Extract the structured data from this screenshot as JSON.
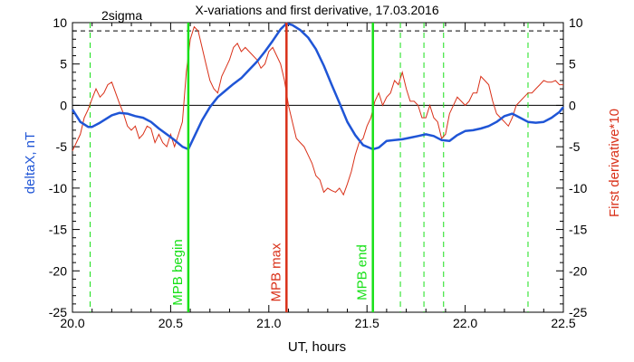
{
  "chart_data": {
    "type": "line",
    "title": "X-variations and first derivative, 17.03.2016",
    "xlabel": "UT, hours",
    "ylabel_left": "deltaX, nT",
    "ylabel_right": "First derivative*10",
    "xlim": [
      20.0,
      22.5
    ],
    "ylim_left": [
      -25,
      10
    ],
    "ylim_right": [
      -25,
      10
    ],
    "x_ticks": [
      "20.0",
      "20.5",
      "21.0",
      "21.5",
      "22.0",
      "22.5"
    ],
    "y_ticks": [
      "10",
      "5",
      "0",
      "-5",
      "-10",
      "-15",
      "-20",
      "-25"
    ],
    "sigma_label": "2sigma",
    "sigma_level": 9,
    "zero_level": 0,
    "colors": {
      "deltaX": "#1f55d6",
      "derivative": "#d93018",
      "mpb_begin_end": "#18e018",
      "mpb_max": "#d93018",
      "sigma": "#000000"
    },
    "vertical_markers": [
      {
        "label": "MPB begin",
        "x": 20.59,
        "kind": "begin"
      },
      {
        "label": "MPB max",
        "x": 21.09,
        "kind": "max"
      },
      {
        "label": "MPB end",
        "x": 21.53,
        "kind": "end"
      }
    ],
    "dashed_green_x": [
      20.09,
      21.67,
      21.79,
      21.89,
      22.32
    ],
    "series": [
      {
        "key": "deltaX",
        "axis": "left",
        "x": [
          20.0,
          20.04,
          20.08,
          20.1,
          20.14,
          20.2,
          20.24,
          20.28,
          20.32,
          20.36,
          20.4,
          20.44,
          20.48,
          20.52,
          20.56,
          20.59,
          20.62,
          20.66,
          20.7,
          20.74,
          20.78,
          20.82,
          20.86,
          20.9,
          20.94,
          20.98,
          21.02,
          21.06,
          21.09,
          21.12,
          21.16,
          21.2,
          21.24,
          21.28,
          21.32,
          21.36,
          21.4,
          21.44,
          21.48,
          21.53,
          21.56,
          21.6,
          21.64,
          21.68,
          21.72,
          21.76,
          21.8,
          21.84,
          21.88,
          21.92,
          21.96,
          22.0,
          22.04,
          22.08,
          22.12,
          22.16,
          22.2,
          22.24,
          22.28,
          22.32,
          22.36,
          22.4,
          22.44,
          22.48,
          22.5
        ],
        "values": [
          -0.5,
          -2.0,
          -2.6,
          -2.6,
          -2.1,
          -1.2,
          -0.9,
          -1.0,
          -1.3,
          -1.5,
          -2.0,
          -2.8,
          -3.5,
          -4.2,
          -5.0,
          -5.3,
          -3.8,
          -1.8,
          -0.2,
          1.0,
          1.8,
          2.6,
          3.3,
          4.3,
          5.3,
          6.5,
          7.8,
          9.2,
          9.9,
          9.7,
          9.1,
          8.2,
          6.8,
          4.8,
          2.5,
          0.3,
          -2.0,
          -3.6,
          -4.8,
          -5.3,
          -5.1,
          -4.3,
          -4.2,
          -4.1,
          -3.9,
          -3.7,
          -3.5,
          -3.7,
          -4.2,
          -4.3,
          -3.6,
          -3.1,
          -3.0,
          -2.8,
          -2.5,
          -2.0,
          -1.3,
          -1.0,
          -1.5,
          -2.0,
          -2.1,
          -2.0,
          -1.5,
          -0.8,
          -0.2
        ]
      },
      {
        "key": "derivative",
        "axis": "right",
        "x": [
          20.0,
          20.02,
          20.04,
          20.06,
          20.08,
          20.1,
          20.12,
          20.14,
          20.16,
          20.18,
          20.2,
          20.22,
          20.24,
          20.26,
          20.28,
          20.3,
          20.32,
          20.34,
          20.36,
          20.38,
          20.4,
          20.42,
          20.44,
          20.46,
          20.48,
          20.5,
          20.52,
          20.54,
          20.56,
          20.58,
          20.6,
          20.62,
          20.64,
          20.66,
          20.68,
          20.7,
          20.72,
          20.74,
          20.76,
          20.78,
          20.8,
          20.82,
          20.84,
          20.86,
          20.88,
          20.9,
          20.92,
          20.94,
          20.96,
          20.98,
          21.0,
          21.02,
          21.04,
          21.06,
          21.08,
          21.1,
          21.12,
          21.14,
          21.16,
          21.18,
          21.2,
          21.22,
          21.24,
          21.26,
          21.28,
          21.3,
          21.32,
          21.34,
          21.36,
          21.38,
          21.4,
          21.42,
          21.44,
          21.46,
          21.48,
          21.5,
          21.52,
          21.54,
          21.56,
          21.58,
          21.6,
          21.62,
          21.64,
          21.66,
          21.68,
          21.7,
          21.72,
          21.74,
          21.76,
          21.78,
          21.8,
          21.82,
          21.84,
          21.86,
          21.88,
          21.9,
          21.92,
          21.94,
          21.96,
          21.98,
          22.0,
          22.02,
          22.04,
          22.06,
          22.08,
          22.1,
          22.12,
          22.14,
          22.16,
          22.18,
          22.2,
          22.22,
          22.24,
          22.26,
          22.28,
          22.3,
          22.32,
          22.34,
          22.36,
          22.38,
          22.4,
          22.42,
          22.44,
          22.46,
          22.48,
          22.5
        ],
        "values": [
          -5.5,
          -4.5,
          -3.5,
          -1.5,
          -0.5,
          0.8,
          2.0,
          1.0,
          1.5,
          2.5,
          2.8,
          1.5,
          0.2,
          -1.0,
          -2.5,
          -3.0,
          -2.5,
          -4.0,
          -3.5,
          -2.5,
          -2.8,
          -4.5,
          -3.5,
          -4.5,
          -5.0,
          -3.5,
          -5.0,
          -3.5,
          -2.0,
          4.0,
          8.0,
          9.5,
          9.0,
          7.0,
          5.0,
          3.0,
          2.0,
          1.5,
          3.5,
          4.5,
          5.5,
          7.0,
          7.5,
          6.5,
          7.0,
          6.5,
          6.0,
          5.5,
          4.5,
          5.0,
          6.5,
          7.0,
          6.0,
          5.0,
          3.0,
          0.0,
          -2.0,
          -4.0,
          -4.5,
          -5.0,
          -6.0,
          -7.0,
          -8.5,
          -9.0,
          -10.5,
          -10.0,
          -10.3,
          -10.5,
          -10.0,
          -10.8,
          -9.5,
          -8.0,
          -6.0,
          -4.5,
          -4.0,
          -2.5,
          -1.5,
          0.5,
          1.5,
          0.0,
          1.0,
          1.5,
          3.0,
          2.5,
          4.0,
          2.0,
          0.5,
          0.5,
          0.0,
          -1.5,
          -1.5,
          0.0,
          -1.5,
          -2.0,
          -4.0,
          -3.5,
          -1.0,
          0.0,
          1.0,
          0.5,
          0.0,
          0.5,
          1.5,
          1.5,
          3.5,
          3.0,
          2.5,
          0.5,
          -1.0,
          -1.5,
          -2.0,
          -2.5,
          -1.5,
          0.0,
          0.5,
          1.0,
          1.5,
          1.5,
          2.0,
          2.5,
          3.0,
          2.8,
          2.8,
          3.0,
          2.5,
          2.5
        ]
      }
    ]
  }
}
